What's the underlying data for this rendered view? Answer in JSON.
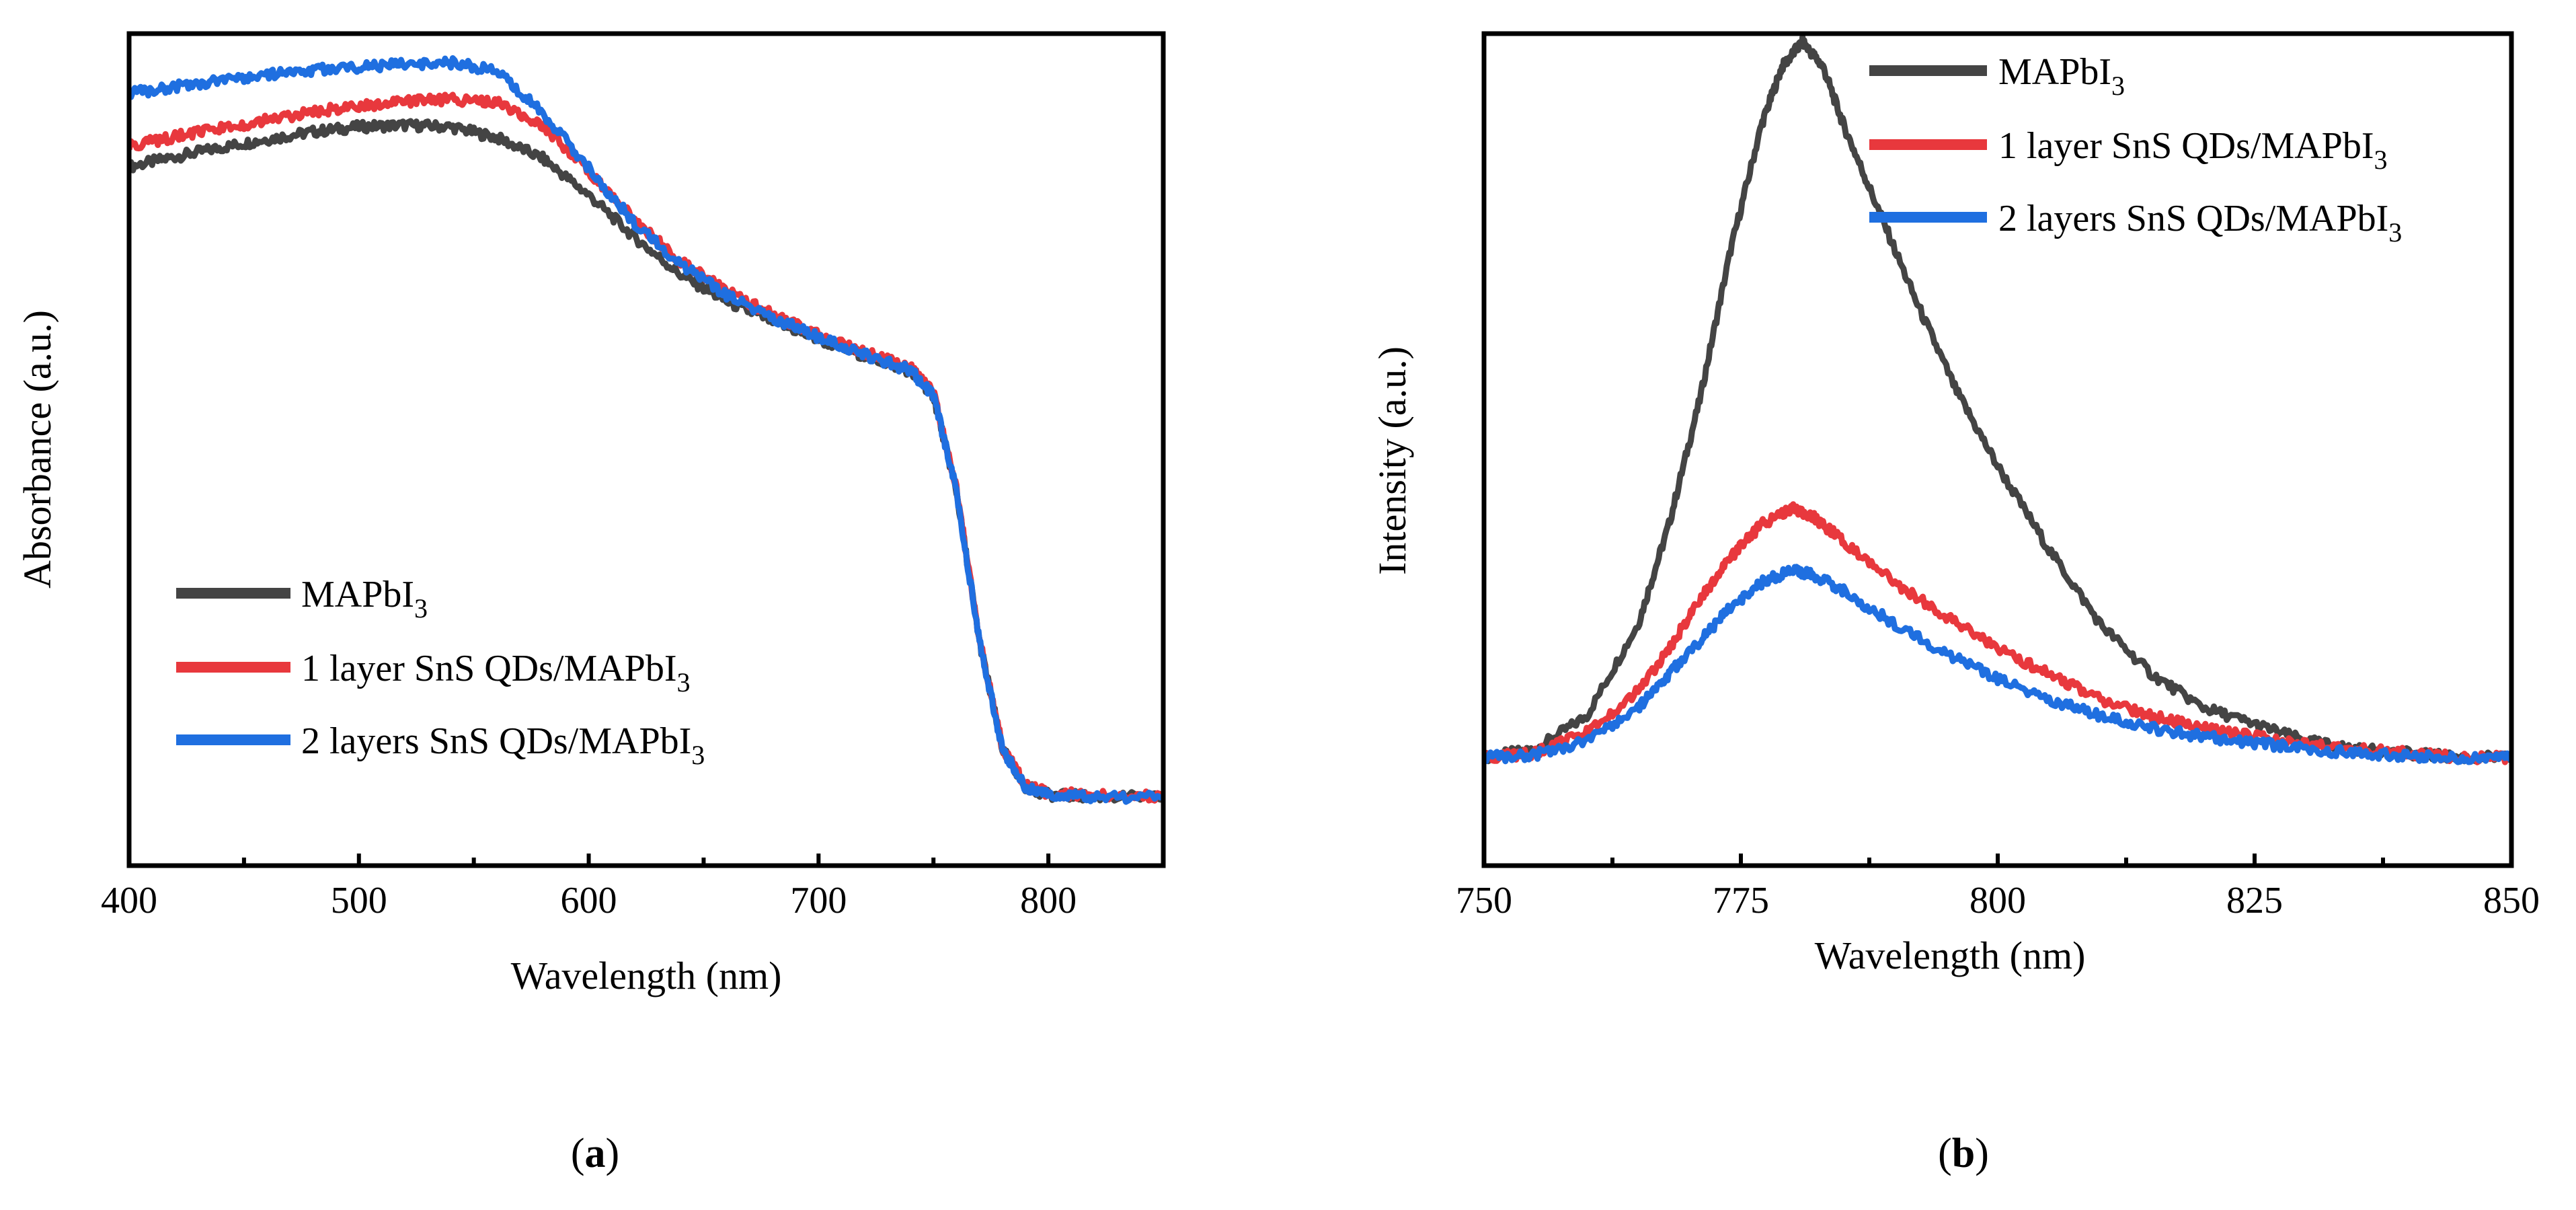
{
  "chart_data": [
    {
      "id": "a",
      "type": "line",
      "caption": {
        "open": "(",
        "letter": "a",
        "close": ")"
      },
      "xlabel": "Wavelength (nm)",
      "ylabel": "Absorbance (a.u.)",
      "xlim": [
        400,
        850
      ],
      "ylim": [
        0,
        1.0
      ],
      "x_ticks": [
        400,
        500,
        600,
        700,
        800
      ],
      "x_tick_labels": [
        "400",
        "500",
        "600",
        "700",
        "800"
      ],
      "x_minor_ticks": [
        450,
        550,
        650,
        750
      ],
      "y_ticks_shown": false,
      "legend_position": "lower-left",
      "series": [
        {
          "name": "MAPbI3",
          "legend_base": "MAPbI",
          "legend_sub": "3",
          "color": "#444444",
          "x": [
            400,
            420,
            440,
            460,
            480,
            500,
            520,
            540,
            560,
            580,
            600,
            620,
            640,
            660,
            680,
            700,
            720,
            740,
            750,
            760,
            770,
            780,
            790,
            800,
            820,
            850
          ],
          "y": [
            0.84,
            0.852,
            0.863,
            0.873,
            0.882,
            0.888,
            0.89,
            0.888,
            0.875,
            0.85,
            0.806,
            0.755,
            0.71,
            0.678,
            0.654,
            0.632,
            0.613,
            0.594,
            0.565,
            0.45,
            0.27,
            0.14,
            0.095,
            0.085,
            0.083,
            0.082
          ]
        },
        {
          "name": "1 layer SnS QDs/MAPbI3",
          "legend_base": "1 layer SnS QDs/MAPbI",
          "legend_sub": "3",
          "color": "#e8383d",
          "x": [
            400,
            420,
            440,
            460,
            480,
            500,
            520,
            540,
            560,
            580,
            600,
            620,
            640,
            660,
            680,
            700,
            720,
            740,
            750,
            760,
            770,
            780,
            790,
            800,
            820,
            850
          ],
          "y": [
            0.865,
            0.876,
            0.886,
            0.896,
            0.906,
            0.913,
            0.918,
            0.921,
            0.918,
            0.89,
            0.835,
            0.776,
            0.727,
            0.69,
            0.662,
            0.638,
            0.617,
            0.598,
            0.568,
            0.452,
            0.272,
            0.142,
            0.097,
            0.087,
            0.085,
            0.083
          ]
        },
        {
          "name": "2 layers SnS QDs/MAPbI3",
          "legend_base": "2 layers SnS QDs/MAPbI",
          "legend_sub": "3",
          "color": "#1f6fe0",
          "x": [
            400,
            420,
            440,
            460,
            480,
            500,
            520,
            540,
            560,
            580,
            600,
            620,
            640,
            660,
            680,
            700,
            720,
            740,
            750,
            760,
            770,
            780,
            790,
            800,
            820,
            850
          ],
          "y": [
            0.928,
            0.936,
            0.944,
            0.951,
            0.956,
            0.96,
            0.963,
            0.965,
            0.955,
            0.905,
            0.838,
            0.772,
            0.723,
            0.686,
            0.659,
            0.635,
            0.614,
            0.595,
            0.566,
            0.45,
            0.27,
            0.14,
            0.095,
            0.085,
            0.083,
            0.082
          ]
        }
      ]
    },
    {
      "id": "b",
      "type": "line",
      "caption": {
        "open": "(",
        "letter": "b",
        "close": ")"
      },
      "xlabel": "Wavelength (nm)",
      "ylabel": "Intensity (a.u.)",
      "xlim": [
        750,
        850
      ],
      "ylim": [
        0,
        1.0
      ],
      "x_ticks": [
        750,
        775,
        800,
        825,
        850
      ],
      "x_tick_labels": [
        "750",
        "775",
        "800",
        "825",
        "850"
      ],
      "x_minor_ticks": [
        762.5,
        787.5,
        812.5,
        837.5
      ],
      "y_ticks_shown": false,
      "legend_position": "top-right",
      "series": [
        {
          "name": "MAPbI3",
          "legend_base": "MAPbI",
          "legend_sub": "3",
          "color": "#444444",
          "x": [
            750,
            755,
            760,
            765,
            768,
            771,
            774,
            777,
            779,
            781,
            783,
            785,
            788,
            792,
            796,
            800,
            805,
            810,
            815,
            820,
            825,
            830,
            835,
            840,
            845,
            850
          ],
          "y": [
            0.13,
            0.14,
            0.18,
            0.29,
            0.41,
            0.56,
            0.74,
            0.89,
            0.96,
            0.99,
            0.96,
            0.89,
            0.8,
            0.68,
            0.57,
            0.48,
            0.38,
            0.29,
            0.23,
            0.19,
            0.17,
            0.15,
            0.14,
            0.135,
            0.13,
            0.13
          ]
        },
        {
          "name": "1 layer SnS QDs/MAPbI3",
          "legend_base": "1 layer SnS QDs/MAPbI",
          "legend_sub": "3",
          "color": "#e8383d",
          "x": [
            750,
            755,
            760,
            765,
            768,
            771,
            774,
            777,
            780,
            782,
            785,
            790,
            795,
            800,
            805,
            810,
            815,
            820,
            825,
            830,
            835,
            840,
            845,
            850
          ],
          "y": [
            0.13,
            0.135,
            0.16,
            0.21,
            0.26,
            0.32,
            0.37,
            0.41,
            0.43,
            0.42,
            0.39,
            0.34,
            0.3,
            0.26,
            0.23,
            0.2,
            0.18,
            0.165,
            0.155,
            0.145,
            0.14,
            0.135,
            0.13,
            0.13
          ]
        },
        {
          "name": "2 layers SnS QDs/MAPbI3",
          "legend_base": "2 layers SnS QDs/MAPbI",
          "legend_sub": "3",
          "color": "#1f6fe0",
          "x": [
            750,
            755,
            760,
            765,
            768,
            771,
            774,
            777,
            780,
            782,
            785,
            790,
            795,
            800,
            805,
            810,
            815,
            820,
            825,
            830,
            835,
            840,
            845,
            850
          ],
          "y": [
            0.13,
            0.133,
            0.15,
            0.19,
            0.23,
            0.27,
            0.31,
            0.34,
            0.355,
            0.35,
            0.33,
            0.29,
            0.255,
            0.225,
            0.2,
            0.18,
            0.165,
            0.155,
            0.148,
            0.14,
            0.135,
            0.132,
            0.13,
            0.13
          ]
        }
      ]
    }
  ]
}
